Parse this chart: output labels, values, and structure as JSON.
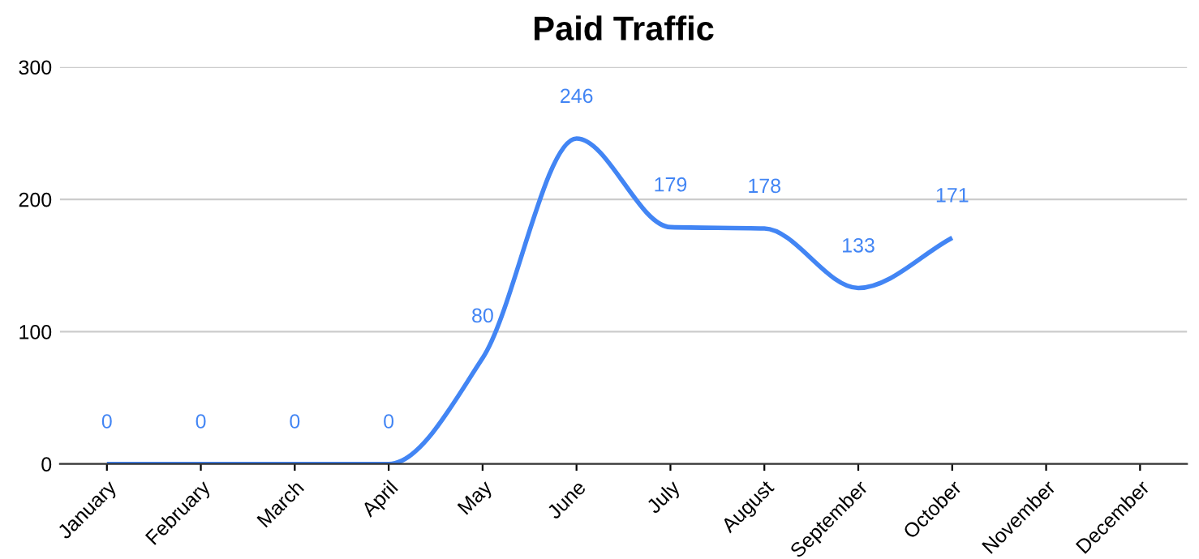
{
  "chart_data": {
    "type": "line",
    "title": "Paid Traffic",
    "categories": [
      "January",
      "February",
      "March",
      "April",
      "May",
      "June",
      "July",
      "August",
      "September",
      "October",
      "November",
      "December"
    ],
    "series": [
      {
        "color": "#4285f4",
        "values": [
          0,
          0,
          0,
          0,
          80,
          246,
          179,
          178,
          133,
          171,
          null,
          null
        ]
      }
    ],
    "ylim": [
      0,
      300
    ],
    "yticks": [
      0,
      100,
      200,
      300
    ],
    "grid": "y",
    "data_labels": true,
    "marker": "none",
    "line_style": "solid",
    "legend": false
  }
}
